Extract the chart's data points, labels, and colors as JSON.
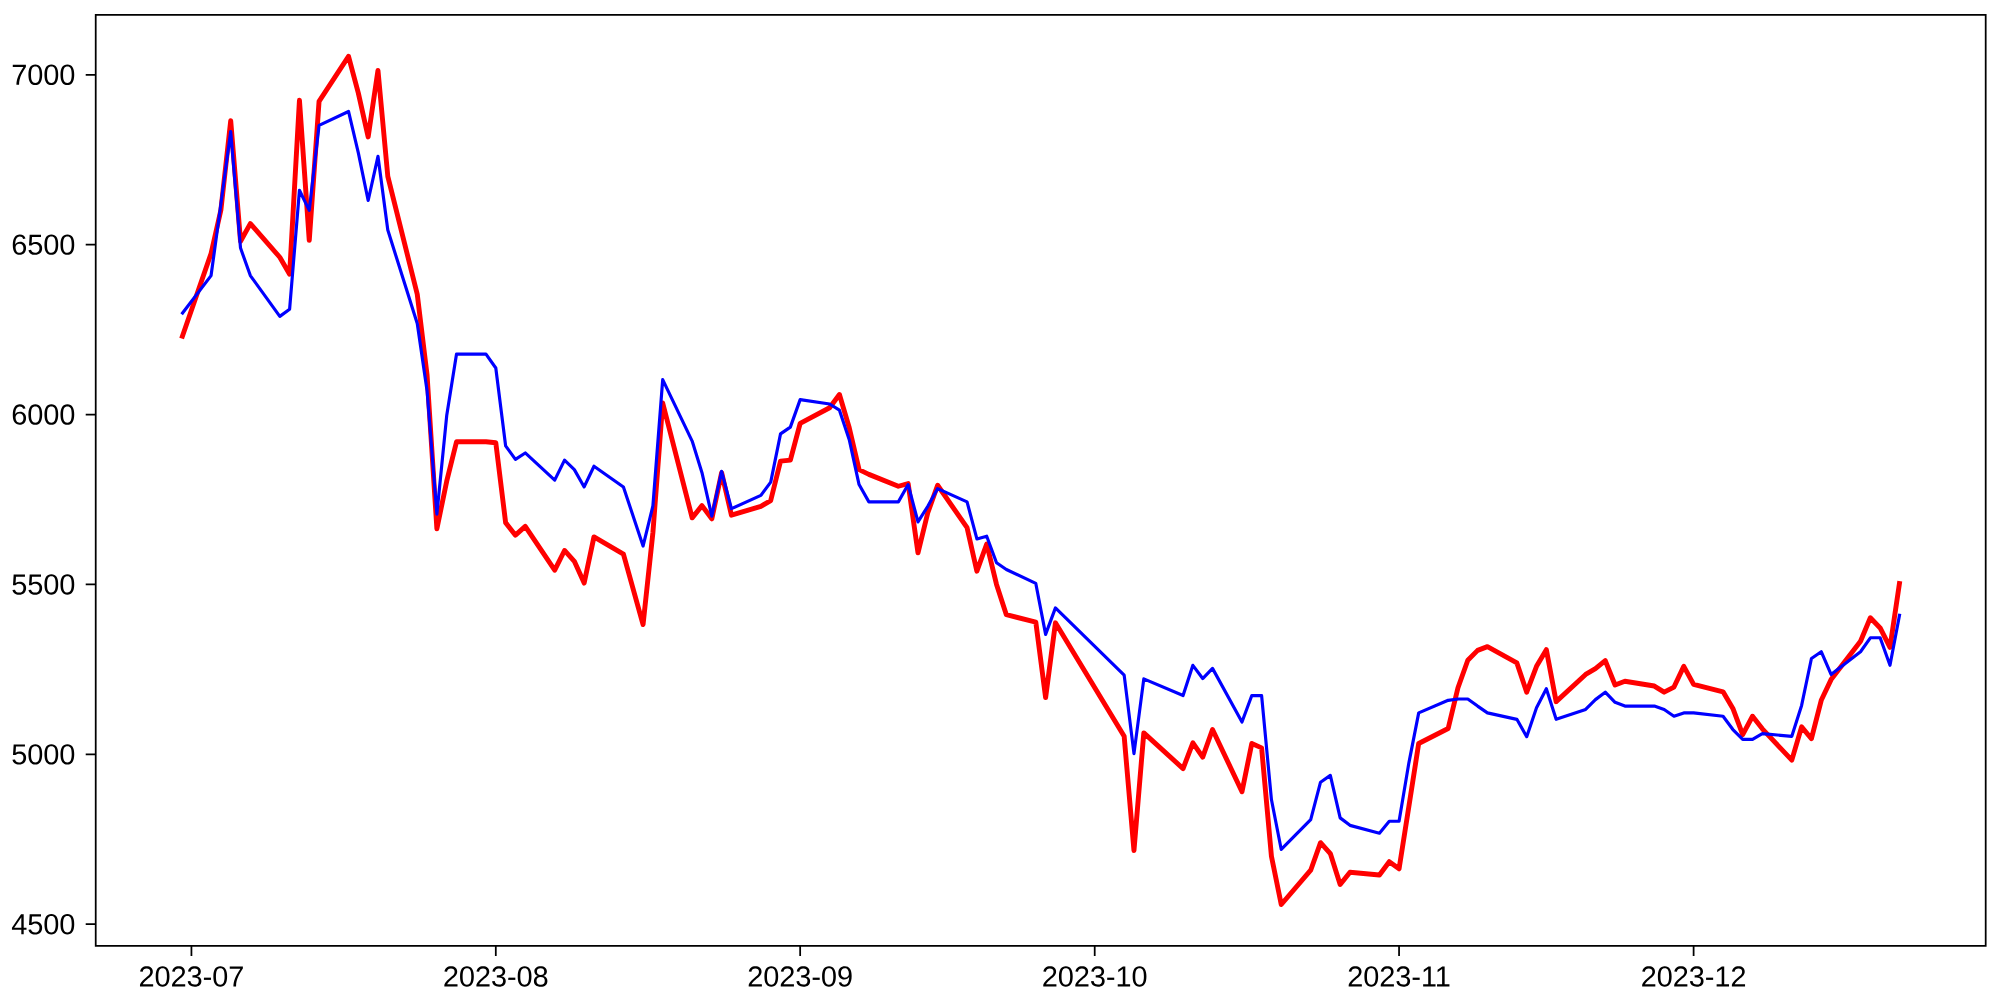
{
  "chart_data": {
    "type": "line",
    "x": [
      "2023-06-30",
      "2023-07-03",
      "2023-07-04",
      "2023-07-05",
      "2023-07-06",
      "2023-07-07",
      "2023-07-10",
      "2023-07-11",
      "2023-07-12",
      "2023-07-13",
      "2023-07-14",
      "2023-07-17",
      "2023-07-18",
      "2023-07-19",
      "2023-07-20",
      "2023-07-21",
      "2023-07-24",
      "2023-07-25",
      "2023-07-26",
      "2023-07-27",
      "2023-07-28",
      "2023-07-31",
      "2023-08-01",
      "2023-08-02",
      "2023-08-03",
      "2023-08-04",
      "2023-08-07",
      "2023-08-08",
      "2023-08-09",
      "2023-08-10",
      "2023-08-11",
      "2023-08-14",
      "2023-08-16",
      "2023-08-17",
      "2023-08-18",
      "2023-08-21",
      "2023-08-22",
      "2023-08-23",
      "2023-08-24",
      "2023-08-25",
      "2023-08-28",
      "2023-08-29",
      "2023-08-30",
      "2023-08-31",
      "2023-09-01",
      "2023-09-04",
      "2023-09-05",
      "2023-09-06",
      "2023-09-07",
      "2023-09-08",
      "2023-09-11",
      "2023-09-12",
      "2023-09-13",
      "2023-09-14",
      "2023-09-15",
      "2023-09-18",
      "2023-09-19",
      "2023-09-20",
      "2023-09-21",
      "2023-09-22",
      "2023-09-25",
      "2023-09-26",
      "2023-09-27",
      "2023-10-04",
      "2023-10-05",
      "2023-10-06",
      "2023-10-10",
      "2023-10-11",
      "2023-10-12",
      "2023-10-13",
      "2023-10-16",
      "2023-10-17",
      "2023-10-18",
      "2023-10-19",
      "2023-10-20",
      "2023-10-23",
      "2023-10-24",
      "2023-10-25",
      "2023-10-26",
      "2023-10-27",
      "2023-10-30",
      "2023-10-31",
      "2023-11-01",
      "2023-11-02",
      "2023-11-03",
      "2023-11-06",
      "2023-11-07",
      "2023-11-08",
      "2023-11-09",
      "2023-11-10",
      "2023-11-13",
      "2023-11-14",
      "2023-11-15",
      "2023-11-16",
      "2023-11-17",
      "2023-11-20",
      "2023-11-21",
      "2023-11-22",
      "2023-11-23",
      "2023-11-24",
      "2023-11-27",
      "2023-11-28",
      "2023-11-29",
      "2023-11-30",
      "2023-12-01",
      "2023-12-04",
      "2023-12-05",
      "2023-12-06",
      "2023-12-07",
      "2023-12-08",
      "2023-12-11",
      "2023-12-12",
      "2023-12-13",
      "2023-12-14",
      "2023-12-15",
      "2023-12-18",
      "2023-12-19",
      "2023-12-20",
      "2023-12-21",
      "2023-12-22"
    ],
    "series": [
      {
        "color": "#ff0000",
        "values": [
          6224,
          6474,
          6602,
          6865,
          6510,
          6562,
          6463,
          6413,
          6925,
          6513,
          6922,
          7054,
          6946,
          6817,
          7013,
          6701,
          6354,
          6116,
          5664,
          5804,
          5920,
          5920,
          5917,
          5682,
          5645,
          5671,
          5542,
          5600,
          5568,
          5504,
          5640,
          5589,
          5382,
          5652,
          6034,
          5696,
          5732,
          5693,
          5829,
          5704,
          5730,
          5747,
          5863,
          5866,
          5974,
          6020,
          6059,
          5961,
          5838,
          5824,
          5789,
          5797,
          5593,
          5711,
          5792,
          5667,
          5539,
          5619,
          5500,
          5411,
          5389,
          5167,
          5387,
          5053,
          4717,
          5063,
          4958,
          5034,
          4992,
          5073,
          4890,
          5032,
          5019,
          4700,
          4558,
          4659,
          4740,
          4708,
          4617,
          4653,
          4645,
          4684,
          4663,
          4847,
          5032,
          5076,
          5196,
          5277,
          5306,
          5317,
          5269,
          5183,
          5259,
          5308,
          5155,
          5235,
          5252,
          5276,
          5204,
          5215,
          5201,
          5183,
          5198,
          5259,
          5206,
          5184,
          5135,
          5058,
          5112,
          5075,
          4983,
          5081,
          5046,
          5159,
          5220,
          5333,
          5402,
          5372,
          5315,
          5510
        ]
      },
      {
        "color": "#0000ff",
        "values": [
          6295,
          6409,
          6620,
          6833,
          6490,
          6409,
          6289,
          6310,
          6660,
          6601,
          6851,
          6892,
          6770,
          6630,
          6760,
          6543,
          6268,
          6070,
          5707,
          5997,
          6178,
          6178,
          6137,
          5908,
          5868,
          5887,
          5807,
          5866,
          5838,
          5787,
          5848,
          5787,
          5613,
          5731,
          6103,
          5922,
          5829,
          5701,
          5833,
          5723,
          5762,
          5801,
          5943,
          5963,
          6044,
          6031,
          6013,
          5926,
          5794,
          5743,
          5743,
          5794,
          5684,
          5730,
          5782,
          5743,
          5634,
          5642,
          5564,
          5544,
          5503,
          5353,
          5431,
          5233,
          5002,
          5222,
          5173,
          5262,
          5223,
          5253,
          5095,
          5173,
          5173,
          4867,
          4720,
          4808,
          4918,
          4938,
          4813,
          4791,
          4768,
          4803,
          4803,
          4975,
          5122,
          5159,
          5163,
          5163,
          5142,
          5122,
          5103,
          5052,
          5137,
          5193,
          5103,
          5132,
          5161,
          5183,
          5153,
          5142,
          5142,
          5132,
          5112,
          5122,
          5122,
          5112,
          5073,
          5044,
          5044,
          5061,
          5053,
          5144,
          5282,
          5302,
          5235,
          5302,
          5343,
          5343,
          5262,
          5414
        ]
      }
    ],
    "xlim": [
      "2023-06-21T06:00",
      "2023-12-30T18:00"
    ],
    "ylim": [
      4436,
      7176
    ],
    "xticks": [
      {
        "value": "2023-07-01",
        "label": "2023-07"
      },
      {
        "value": "2023-08-01",
        "label": "2023-08"
      },
      {
        "value": "2023-09-01",
        "label": "2023-09"
      },
      {
        "value": "2023-10-01",
        "label": "2023-10"
      },
      {
        "value": "2023-11-01",
        "label": "2023-11"
      },
      {
        "value": "2023-12-01",
        "label": "2023-12"
      }
    ],
    "yticks": [
      4500,
      5000,
      5500,
      6000,
      6500,
      7000
    ]
  }
}
